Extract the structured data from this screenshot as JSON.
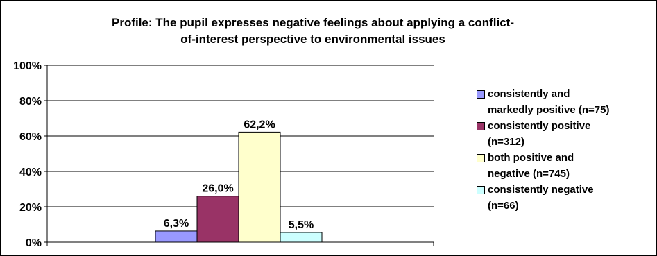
{
  "chart_data": {
    "type": "bar",
    "title_lines": [
      "Profile: The pupil expresses negative feelings about applying a conflict-",
      "of-interest perspective to environmental issues"
    ],
    "ylim": [
      0,
      100
    ],
    "ytick_labels": [
      "0%",
      "20%",
      "40%",
      "60%",
      "80%",
      "100%"
    ],
    "ytick_values": [
      0,
      20,
      40,
      60,
      80,
      100
    ],
    "grid": true,
    "legend_position": "right",
    "series": [
      {
        "name": "consistently and markedly positive (n=75)",
        "legend_lines": [
          "consistently and",
          "markedly positive (n=75)"
        ],
        "value": 6.3,
        "label": "6,3%",
        "color": "#9999ff"
      },
      {
        "name": "consistently positive (n=312)",
        "legend_lines": [
          "consistently positive",
          "(n=312)"
        ],
        "value": 26.0,
        "label": "26,0%",
        "color": "#993366"
      },
      {
        "name": "both positive and negative (n=745)",
        "legend_lines": [
          "both positive and",
          "negative (n=745)"
        ],
        "value": 62.2,
        "label": "62,2%",
        "color": "#ffffcc"
      },
      {
        "name": "consistently negative (n=66)",
        "legend_lines": [
          "consistently negative",
          "(n=66)"
        ],
        "value": 5.5,
        "label": "5,5%",
        "color": "#ccffff"
      }
    ]
  }
}
